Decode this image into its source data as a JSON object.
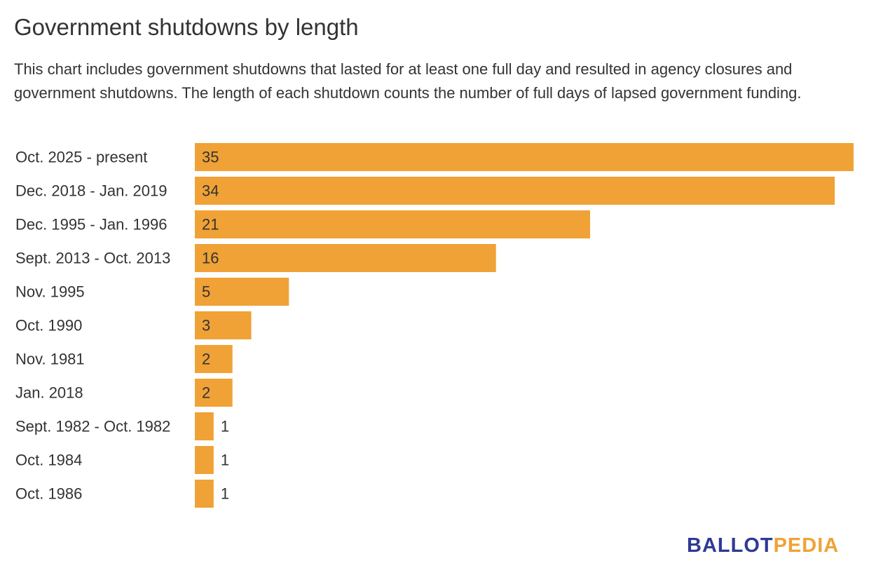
{
  "title": "Government shutdowns by length",
  "subtitle": "This chart includes government shutdowns that lasted for at least one full day and resulted in agency closures and government shutdowns. The length of each shutdown counts the number of full days of lapsed government funding.",
  "logo": {
    "part1": "BALLOT",
    "part2": "PEDIA",
    "color1": "#2e3a96",
    "color2": "#f0a236"
  },
  "colors": {
    "bar": "#f0a236",
    "text": "#333333"
  },
  "chart_data": {
    "type": "bar",
    "orientation": "horizontal",
    "categories": [
      "Oct. 2025 - present",
      "Dec. 2018 - Jan. 2019",
      "Dec. 1995 - Jan. 1996",
      "Sept. 2013 - Oct. 2013",
      "Nov. 1995",
      "Oct. 1990",
      "Nov. 1981",
      "Jan. 2018",
      "Sept. 1982 - Oct. 1982",
      "Oct. 1984",
      "Oct. 1986"
    ],
    "values": [
      35,
      34,
      21,
      16,
      5,
      3,
      2,
      2,
      1,
      1,
      1
    ],
    "xlim": [
      0,
      35
    ],
    "grid": false,
    "data_labels": true
  }
}
